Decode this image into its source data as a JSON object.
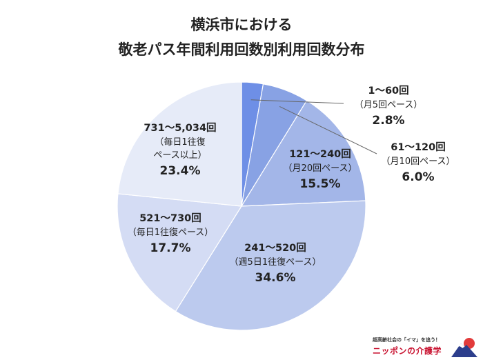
{
  "title_line1": "横浜市における",
  "title_line2": "敬老パス年間利用回数別利用回数分布",
  "colors": {
    "slice_1_60": "#6e8fe6",
    "slice_61_120": "#88a2e4",
    "slice_121_240": "#a3b6e8",
    "slice_241_520": "#bccaee",
    "slice_521_730": "#d4dcf4",
    "slice_731_plus": "#e6ebf8",
    "leader_line": "#666666"
  },
  "chart_data": {
    "type": "pie",
    "start": "12 o'clock",
    "direction": "clockwise",
    "slices": [
      {
        "range": "1〜60回",
        "note": "（月5回ペース）",
        "pct_label": "2.8%",
        "value": 2.8,
        "label_position": "outside"
      },
      {
        "range": "61〜120回",
        "note": "（月10回ペース）",
        "pct_label": "6.0%",
        "value": 6.0,
        "label_position": "outside"
      },
      {
        "range": "121〜240回",
        "note": "（月20回ペース）",
        "pct_label": "15.5%",
        "value": 15.5,
        "label_position": "inside"
      },
      {
        "range": "241〜520回",
        "note": "（週5日1往復ペース）",
        "pct_label": "34.6%",
        "value": 34.6,
        "label_position": "inside"
      },
      {
        "range": "521〜730回",
        "note": "（毎日1往復ペース）",
        "pct_label": "17.7%",
        "value": 17.7,
        "label_position": "inside"
      },
      {
        "range": "731〜5,034回",
        "note": "（毎日1往復",
        "note2": "ペース以上）",
        "pct_label": "23.4%",
        "value": 23.4,
        "label_position": "inside"
      }
    ]
  },
  "brand": {
    "tagline": "超高齢社会の「イマ」を追う！",
    "name": "ニッポンの介護学"
  }
}
